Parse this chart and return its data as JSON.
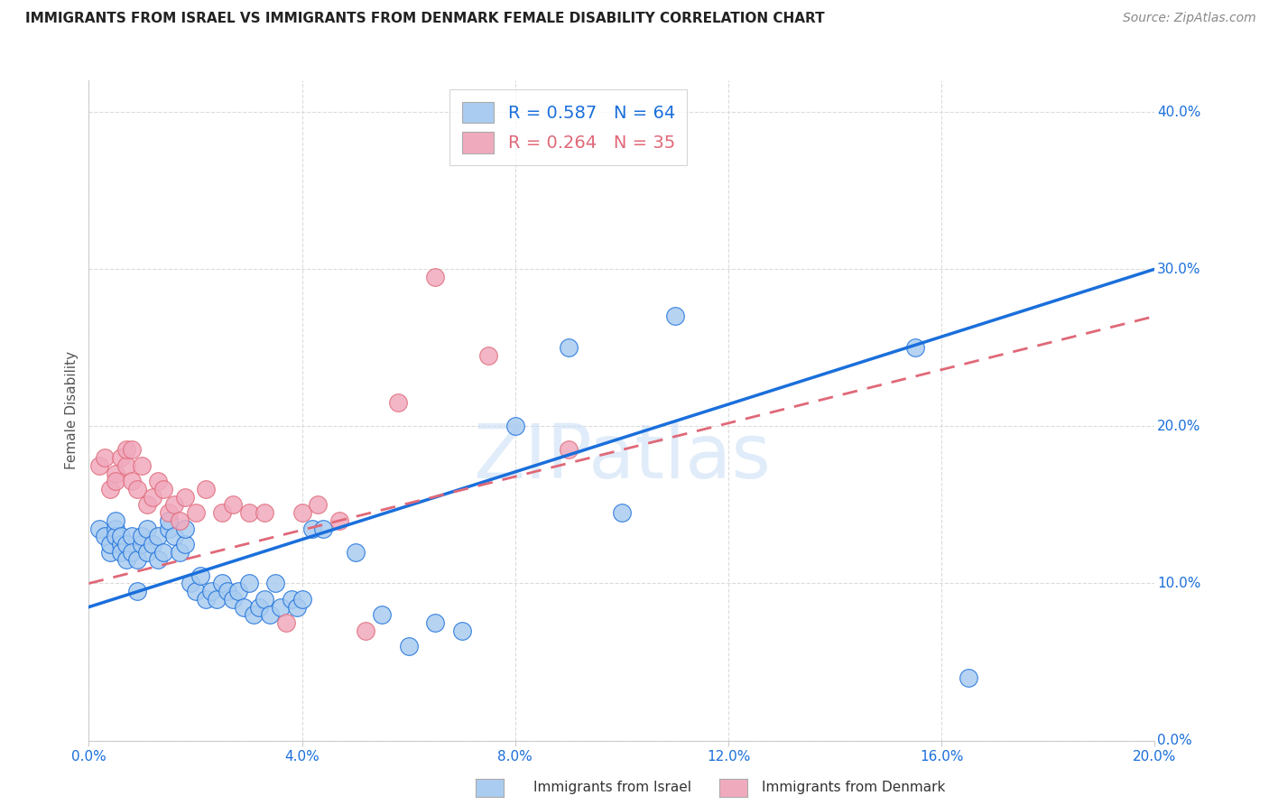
{
  "title": "IMMIGRANTS FROM ISRAEL VS IMMIGRANTS FROM DENMARK FEMALE DISABILITY CORRELATION CHART",
  "source": "Source: ZipAtlas.com",
  "ylabel": "Female Disability",
  "watermark": "ZIPatlas",
  "xlim": [
    0.0,
    0.2
  ],
  "ylim": [
    0.0,
    0.42
  ],
  "xticks": [
    0.0,
    0.04,
    0.08,
    0.12,
    0.16,
    0.2
  ],
  "yticks": [
    0.0,
    0.1,
    0.2,
    0.3,
    0.4
  ],
  "israel_R": 0.587,
  "israel_N": 64,
  "denmark_R": 0.264,
  "denmark_N": 35,
  "israel_color": "#aaccf0",
  "denmark_color": "#f0aabe",
  "trendline_israel_color": "#1a6fdb",
  "trendline_denmark_color": "#e06878",
  "legend_israel_label": "Immigrants from Israel",
  "legend_denmark_label": "Immigrants from Denmark",
  "israel_trendline": [
    0.085,
    0.3
  ],
  "denmark_trendline": [
    0.1,
    0.27
  ],
  "israel_scatter_x": [
    0.002,
    0.003,
    0.004,
    0.004,
    0.005,
    0.005,
    0.005,
    0.006,
    0.006,
    0.006,
    0.007,
    0.007,
    0.008,
    0.008,
    0.009,
    0.009,
    0.01,
    0.01,
    0.011,
    0.011,
    0.012,
    0.013,
    0.013,
    0.014,
    0.015,
    0.015,
    0.016,
    0.017,
    0.018,
    0.018,
    0.019,
    0.02,
    0.021,
    0.022,
    0.023,
    0.024,
    0.025,
    0.026,
    0.027,
    0.028,
    0.029,
    0.03,
    0.031,
    0.032,
    0.033,
    0.034,
    0.035,
    0.036,
    0.038,
    0.039,
    0.04,
    0.042,
    0.044,
    0.05,
    0.055,
    0.06,
    0.065,
    0.07,
    0.08,
    0.09,
    0.1,
    0.11,
    0.155,
    0.165
  ],
  "israel_scatter_y": [
    0.135,
    0.13,
    0.12,
    0.125,
    0.135,
    0.13,
    0.14,
    0.125,
    0.13,
    0.12,
    0.125,
    0.115,
    0.13,
    0.12,
    0.115,
    0.095,
    0.125,
    0.13,
    0.12,
    0.135,
    0.125,
    0.13,
    0.115,
    0.12,
    0.135,
    0.14,
    0.13,
    0.12,
    0.125,
    0.135,
    0.1,
    0.095,
    0.105,
    0.09,
    0.095,
    0.09,
    0.1,
    0.095,
    0.09,
    0.095,
    0.085,
    0.1,
    0.08,
    0.085,
    0.09,
    0.08,
    0.1,
    0.085,
    0.09,
    0.085,
    0.09,
    0.135,
    0.135,
    0.12,
    0.08,
    0.06,
    0.075,
    0.07,
    0.2,
    0.25,
    0.145,
    0.27,
    0.25,
    0.04
  ],
  "denmark_scatter_x": [
    0.002,
    0.003,
    0.004,
    0.005,
    0.005,
    0.006,
    0.007,
    0.007,
    0.008,
    0.008,
    0.009,
    0.01,
    0.011,
    0.012,
    0.013,
    0.014,
    0.015,
    0.016,
    0.017,
    0.018,
    0.02,
    0.022,
    0.025,
    0.027,
    0.03,
    0.033,
    0.037,
    0.04,
    0.043,
    0.047,
    0.052,
    0.058,
    0.065,
    0.075,
    0.09
  ],
  "denmark_scatter_y": [
    0.175,
    0.18,
    0.16,
    0.17,
    0.165,
    0.18,
    0.175,
    0.185,
    0.165,
    0.185,
    0.16,
    0.175,
    0.15,
    0.155,
    0.165,
    0.16,
    0.145,
    0.15,
    0.14,
    0.155,
    0.145,
    0.16,
    0.145,
    0.15,
    0.145,
    0.145,
    0.075,
    0.145,
    0.15,
    0.14,
    0.07,
    0.215,
    0.295,
    0.245,
    0.185
  ]
}
